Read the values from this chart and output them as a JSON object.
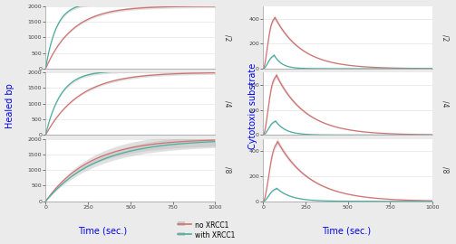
{
  "left_ylabel": "Healed bp",
  "right_ylabel": "Cytotoxic substrate",
  "xlabel": "Time (sec.)",
  "label_color": "#0000EE",
  "xlim": [
    0,
    1000
  ],
  "left_ylim": [
    0,
    2000
  ],
  "right_ylim": [
    0,
    500
  ],
  "row_labels": [
    "/2",
    "/4",
    "/8"
  ],
  "color_no_xrcc1": "#D47070",
  "color_with_xrcc1": "#4AADA0",
  "color_shadow": "#BBBBBB",
  "bg_color": "#EBEBEB",
  "panel_bg": "#FFFFFF",
  "legend_no_xrcc1": "no XRCC1",
  "legend_with_xrcc1": "with XRCC1",
  "tick_label_color": "#444444",
  "left_x_ticks": [
    0,
    250,
    500,
    750,
    1000
  ],
  "right_x_ticks": [
    0,
    250,
    500,
    750,
    1000
  ],
  "left_y_ticks": [
    0,
    500,
    1000,
    1500,
    2000
  ],
  "right_y_ticks": [
    0,
    200,
    400
  ]
}
